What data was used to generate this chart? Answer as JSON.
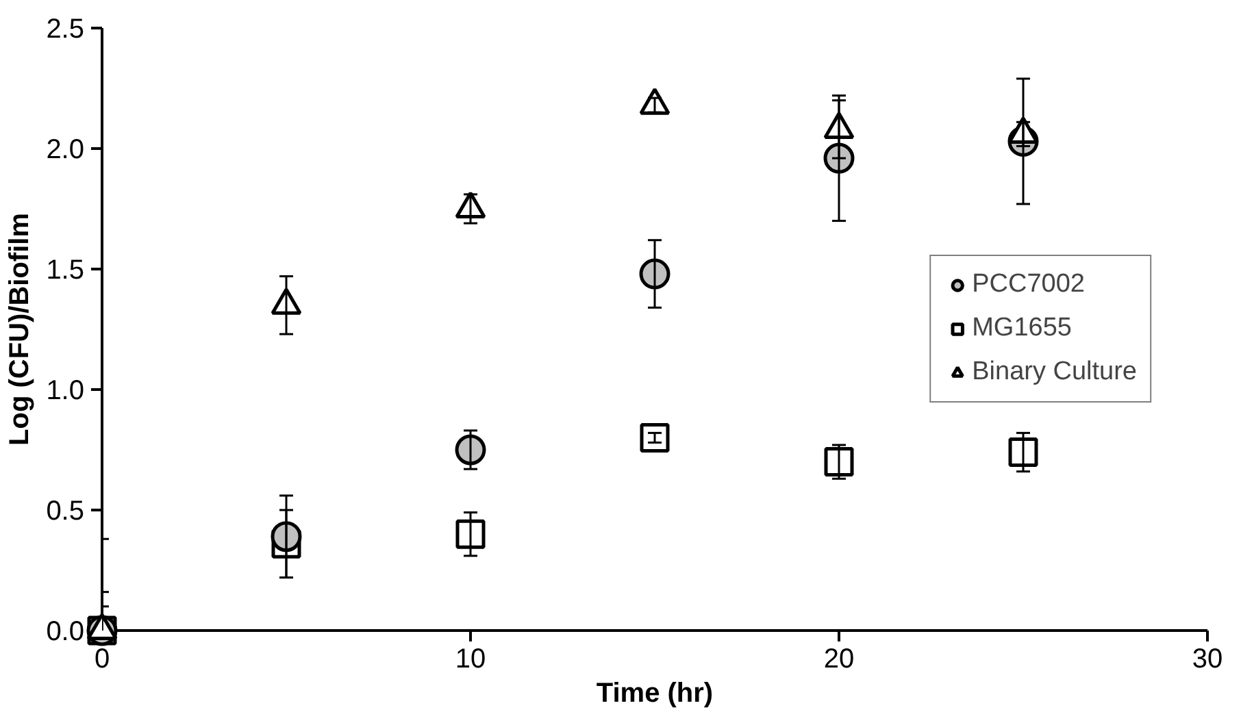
{
  "chart_data": {
    "type": "scatter",
    "xlabel": "Time (hr)",
    "ylabel": "Log (CFU)/Biofilm",
    "x": [
      0,
      5,
      10,
      15,
      20,
      25
    ],
    "series": [
      {
        "name": "PCC7002",
        "color": "#c0c0c0",
        "marker": "circle",
        "values": [
          0,
          0.39,
          0.75,
          1.48,
          1.96,
          2.03
        ],
        "errors": [
          0.38,
          0.17,
          0.08,
          0.14,
          0.26,
          0.26
        ]
      },
      {
        "name": "MG1655",
        "color": "#ffffff",
        "marker": "square",
        "values": [
          0,
          0.36,
          0.4,
          0.8,
          0.7,
          0.74
        ],
        "errors": [
          0.16,
          0.14,
          0.09,
          0.02,
          0.07,
          0.08
        ]
      },
      {
        "name": "Binary Culture",
        "color": "#ffffff",
        "marker": "triangle",
        "values": [
          0,
          1.35,
          1.75,
          2.18,
          2.08,
          2.06
        ],
        "errors": [
          0.1,
          0.12,
          0.06,
          0.03,
          0.12,
          0.05
        ]
      }
    ],
    "xlim": [
      0,
      30
    ],
    "xticks": [
      0,
      10,
      20,
      30
    ],
    "ylim": [
      0,
      2.5
    ],
    "yticks": [
      {
        "value": 0,
        "label": "0.0"
      },
      {
        "value": 0.5,
        "label": "0.5"
      },
      {
        "value": 1,
        "label": "1.0"
      },
      {
        "value": 1.5,
        "label": "1.5"
      },
      {
        "value": 2,
        "label": "2.0"
      },
      {
        "value": 2.5,
        "label": "2.5"
      }
    ],
    "grid": false,
    "legend": "right"
  }
}
